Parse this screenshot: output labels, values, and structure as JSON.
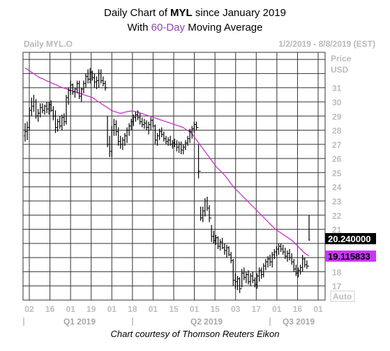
{
  "title": {
    "line1_prefix": "Daily Chart of ",
    "line1_symbol": "MYL",
    "line1_suffix": " since January 2019",
    "line2_prefix": "With ",
    "line2_ma": "60-Day",
    "line2_suffix": " Moving Average"
  },
  "header": {
    "left": "Daily MYL.O",
    "right": "1/2/2019 - 8/8/2019 (EST)"
  },
  "credit": "Chart courtesy of Thomson Reuters Eikon",
  "colors": {
    "ma_line": "#cc33cc",
    "price_box": "#000000",
    "ma_box": "#cc33ff",
    "bars": "#000000"
  },
  "chart_data": {
    "type": "ohlc",
    "axis": {
      "y_title_1": "Price",
      "y_title_2": "USD",
      "y_ticks": [
        "31",
        "30",
        "29",
        "28",
        "27",
        "26",
        "25",
        "24",
        "23",
        "22",
        "21",
        "19",
        "18",
        "17"
      ],
      "ylim": [
        16,
        33.5
      ],
      "x_ticks": [
        "02",
        "16",
        "01",
        "19",
        "01",
        "18",
        "01",
        "15",
        "01",
        "15",
        "03",
        "17",
        "01",
        "16",
        "01"
      ],
      "x_groups": [
        "Q1 2019",
        "Q2 2019",
        "Q3 2019"
      ],
      "auto_label": "Auto"
    },
    "last_price_label": "20.240000",
    "ma_label": "19.115833",
    "price_series": [
      [
        27.6,
        27.2,
        28.5,
        27.9
      ],
      [
        27.9,
        27.3,
        28.6,
        28.2
      ],
      [
        28.2,
        28.0,
        29.6,
        29.4
      ],
      [
        29.4,
        29.0,
        30.3,
        29.7
      ],
      [
        29.7,
        29.3,
        30.5,
        30.0
      ],
      [
        30.0,
        28.8,
        30.2,
        29.0
      ],
      [
        29.0,
        28.6,
        29.5,
        29.2
      ],
      [
        29.2,
        28.9,
        29.9,
        29.6
      ],
      [
        29.6,
        29.2,
        29.9,
        29.4
      ],
      [
        29.4,
        29.1,
        29.8,
        29.7
      ],
      [
        29.7,
        29.2,
        30.0,
        29.5
      ],
      [
        29.5,
        29.1,
        30.0,
        29.8
      ],
      [
        29.8,
        29.3,
        30.1,
        29.4
      ],
      [
        29.4,
        28.7,
        29.7,
        29.0
      ],
      [
        29.0,
        27.8,
        29.4,
        28.2
      ],
      [
        28.2,
        27.9,
        28.8,
        28.6
      ],
      [
        28.6,
        28.1,
        29.0,
        28.3
      ],
      [
        28.3,
        28.0,
        29.1,
        28.9
      ],
      [
        28.9,
        28.3,
        29.2,
        28.6
      ],
      [
        28.6,
        28.4,
        30.5,
        30.3
      ],
      [
        30.3,
        29.8,
        31.0,
        30.8
      ],
      [
        30.8,
        30.5,
        31.5,
        31.2
      ],
      [
        31.2,
        30.5,
        31.3,
        30.7
      ],
      [
        30.7,
        30.3,
        31.0,
        30.9
      ],
      [
        30.9,
        30.6,
        31.5,
        31.3
      ],
      [
        31.3,
        30.2,
        31.5,
        30.4
      ],
      [
        30.4,
        30.0,
        31.0,
        30.9
      ],
      [
        30.9,
        30.6,
        31.5,
        31.3
      ],
      [
        31.3,
        31.0,
        32.0,
        31.8
      ],
      [
        31.8,
        31.3,
        32.3,
        31.6
      ],
      [
        31.6,
        31.3,
        32.4,
        32.1
      ],
      [
        32.1,
        31.5,
        32.2,
        31.7
      ],
      [
        31.7,
        31.0,
        32.0,
        31.4
      ],
      [
        31.4,
        30.9,
        31.8,
        31.5
      ],
      [
        31.5,
        31.0,
        32.3,
        32.0
      ],
      [
        32.0,
        31.3,
        32.3,
        31.5
      ],
      [
        31.5,
        31.1,
        31.8,
        31.3
      ],
      [
        31.3,
        30.8,
        31.5,
        31.0
      ],
      [
        31.0,
        26.8,
        29.0,
        27.0
      ],
      [
        27.0,
        26.1,
        27.6,
        26.5
      ],
      [
        26.5,
        26.1,
        28.3,
        28.0
      ],
      [
        28.0,
        27.6,
        28.8,
        28.4
      ],
      [
        28.4,
        27.6,
        28.7,
        27.9
      ],
      [
        27.9,
        26.9,
        28.2,
        27.2
      ],
      [
        27.2,
        26.7,
        27.6,
        27.0
      ],
      [
        27.0,
        26.6,
        27.5,
        27.3
      ],
      [
        27.3,
        26.9,
        27.8,
        27.6
      ],
      [
        27.6,
        27.1,
        28.2,
        28.0
      ],
      [
        28.0,
        27.6,
        28.5,
        28.3
      ],
      [
        28.3,
        28.0,
        28.8,
        28.6
      ],
      [
        28.6,
        28.3,
        29.1,
        28.9
      ],
      [
        28.9,
        28.6,
        29.3,
        29.1
      ],
      [
        29.1,
        28.7,
        29.4,
        28.9
      ],
      [
        28.9,
        28.4,
        29.2,
        28.6
      ],
      [
        28.6,
        28.2,
        28.9,
        28.4
      ],
      [
        28.4,
        28.1,
        28.8,
        28.5
      ],
      [
        28.5,
        28.0,
        28.7,
        28.2
      ],
      [
        28.2,
        27.7,
        28.6,
        28.4
      ],
      [
        28.4,
        28.0,
        28.9,
        28.7
      ],
      [
        28.7,
        28.2,
        28.8,
        28.3
      ],
      [
        28.3,
        27.0,
        28.4,
        27.3
      ],
      [
        27.3,
        26.9,
        27.8,
        27.6
      ],
      [
        27.6,
        27.3,
        28.1,
        27.9
      ],
      [
        27.9,
        27.5,
        28.2,
        27.7
      ],
      [
        27.7,
        27.2,
        27.9,
        27.4
      ],
      [
        27.4,
        27.0,
        27.6,
        27.2
      ],
      [
        27.2,
        26.9,
        27.5,
        27.3
      ],
      [
        27.3,
        26.9,
        27.6,
        27.0
      ],
      [
        27.0,
        26.7,
        27.3,
        27.1
      ],
      [
        27.1,
        26.8,
        27.4,
        27.0
      ],
      [
        27.0,
        26.5,
        27.3,
        26.8
      ],
      [
        26.8,
        26.4,
        27.2,
        27.0
      ],
      [
        27.0,
        26.3,
        27.2,
        26.6
      ],
      [
        26.6,
        26.3,
        27.0,
        26.8
      ],
      [
        26.8,
        26.6,
        27.3,
        27.1
      ],
      [
        27.1,
        26.9,
        27.6,
        27.4
      ],
      [
        27.4,
        27.1,
        28.1,
        27.9
      ],
      [
        27.9,
        27.4,
        28.3,
        28.1
      ],
      [
        28.1,
        27.8,
        28.6,
        28.4
      ],
      [
        28.4,
        28.0,
        28.6,
        28.2
      ],
      [
        28.2,
        24.6,
        27.0,
        25.1
      ],
      [
        25.1,
        21.6,
        22.6,
        21.8
      ],
      [
        21.8,
        21.5,
        22.6,
        22.3
      ],
      [
        22.3,
        21.9,
        23.2,
        23.0
      ],
      [
        23.0,
        22.3,
        23.3,
        22.5
      ],
      [
        22.5,
        21.5,
        22.7,
        21.8
      ],
      [
        21.8,
        20.1,
        21.3,
        20.5
      ],
      [
        20.5,
        20.0,
        20.9,
        20.2
      ],
      [
        20.2,
        19.9,
        20.6,
        20.4
      ],
      [
        20.4,
        19.6,
        20.5,
        19.8
      ],
      [
        19.8,
        19.5,
        20.3,
        20.1
      ],
      [
        20.1,
        19.6,
        20.4,
        19.7
      ],
      [
        19.7,
        19.2,
        20.0,
        19.5
      ],
      [
        19.5,
        19.0,
        19.9,
        19.7
      ],
      [
        19.7,
        19.1,
        19.8,
        19.2
      ],
      [
        19.2,
        18.6,
        19.4,
        18.8
      ],
      [
        18.8,
        17.0,
        18.9,
        17.4
      ],
      [
        17.4,
        16.8,
        17.9,
        17.3
      ],
      [
        17.3,
        16.7,
        17.7,
        17.5
      ],
      [
        17.5,
        16.5,
        17.6,
        16.8
      ],
      [
        16.8,
        16.9,
        18.2,
        17.9
      ],
      [
        17.9,
        17.4,
        18.3,
        17.6
      ],
      [
        17.6,
        17.2,
        18.0,
        17.8
      ],
      [
        17.8,
        17.1,
        18.1,
        17.3
      ],
      [
        17.3,
        17.0,
        17.9,
        17.7
      ],
      [
        17.7,
        17.2,
        18.0,
        17.4
      ],
      [
        17.4,
        16.9,
        17.6,
        17.1
      ],
      [
        17.1,
        16.8,
        17.9,
        17.7
      ],
      [
        17.7,
        17.3,
        18.3,
        18.1
      ],
      [
        18.1,
        17.5,
        18.3,
        17.8
      ],
      [
        17.8,
        17.6,
        18.6,
        18.4
      ],
      [
        18.4,
        18.1,
        18.9,
        18.7
      ],
      [
        18.7,
        18.3,
        19.1,
        18.9
      ],
      [
        18.9,
        18.4,
        19.2,
        18.7
      ],
      [
        18.7,
        18.3,
        19.4,
        19.2
      ],
      [
        19.2,
        18.9,
        19.6,
        19.4
      ],
      [
        19.4,
        19.1,
        19.8,
        19.6
      ],
      [
        19.6,
        19.2,
        20.0,
        19.8
      ],
      [
        19.8,
        19.4,
        20.0,
        19.6
      ],
      [
        19.6,
        19.2,
        19.9,
        19.4
      ],
      [
        19.4,
        18.9,
        19.7,
        19.1
      ],
      [
        19.1,
        18.7,
        19.5,
        19.3
      ],
      [
        19.3,
        18.8,
        19.6,
        19.0
      ],
      [
        19.0,
        18.5,
        19.3,
        18.7
      ],
      [
        18.7,
        18.0,
        18.9,
        18.2
      ],
      [
        18.2,
        17.7,
        18.5,
        17.9
      ],
      [
        17.9,
        17.6,
        18.3,
        18.1
      ],
      [
        18.1,
        17.8,
        18.5,
        18.3
      ],
      [
        18.3,
        18.0,
        19.2,
        18.9
      ],
      [
        18.9,
        18.3,
        19.0,
        18.5
      ],
      [
        18.5,
        18.2,
        18.8,
        18.4
      ],
      [
        18.4,
        20.2,
        22.0,
        20.24
      ]
    ],
    "ma_series": [
      32.4,
      32.3,
      32.2,
      32.1,
      32.0,
      31.9,
      31.8,
      31.7,
      31.65,
      31.6,
      31.5,
      31.45,
      31.4,
      31.3,
      31.25,
      31.2,
      31.1,
      31.05,
      31.0,
      30.95,
      30.9,
      30.85,
      30.8,
      30.75,
      30.7,
      30.65,
      30.6,
      30.55,
      30.5,
      30.45,
      30.4,
      30.35,
      30.3,
      30.2,
      30.1,
      30.0,
      29.9,
      29.8,
      29.7,
      29.6,
      29.5,
      29.4,
      29.35,
      29.3,
      29.25,
      29.2,
      29.2,
      29.25,
      29.3,
      29.32,
      29.35,
      29.35,
      29.33,
      29.3,
      29.25,
      29.2,
      29.15,
      29.1,
      29.05,
      29.0,
      28.95,
      28.9,
      28.85,
      28.8,
      28.75,
      28.7,
      28.65,
      28.6,
      28.55,
      28.5,
      28.45,
      28.4,
      28.35,
      28.3,
      28.25,
      28.2,
      28.1,
      28.0,
      27.9,
      27.8,
      27.6,
      27.4,
      27.2,
      27.0,
      26.8,
      26.6,
      26.4,
      26.2,
      26.0,
      25.8,
      25.6,
      25.4,
      25.25,
      25.1,
      24.95,
      24.8,
      24.6,
      24.4,
      24.2,
      24.0,
      23.85,
      23.7,
      23.55,
      23.4,
      23.25,
      23.1,
      22.95,
      22.8,
      22.65,
      22.5,
      22.35,
      22.2,
      22.05,
      21.9,
      21.75,
      21.6,
      21.45,
      21.3,
      21.15,
      21.0,
      20.9,
      20.8,
      20.7,
      20.6,
      20.5,
      20.4,
      20.3,
      20.2,
      20.05,
      19.9,
      19.75,
      19.6,
      19.45,
      19.3,
      19.2,
      19.12
    ]
  }
}
